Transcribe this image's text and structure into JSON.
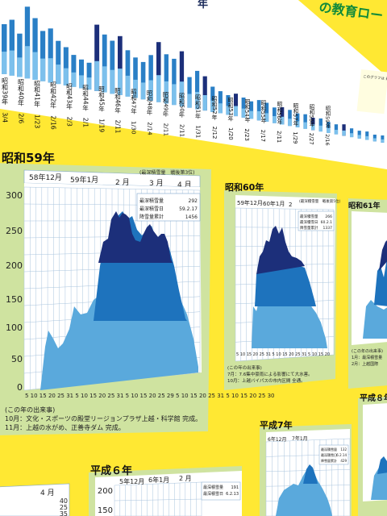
{
  "poster": {
    "background": "#ffe833",
    "top_fragment": "年",
    "top_right_fragment": "の教育ロー",
    "corner_note": "このグラフは 最深積雪の"
  },
  "colors": {
    "light_blue": "#5aa9dc",
    "mid_blue": "#1e73bd",
    "dark_blue": "#1c2f7a",
    "green_panel": "#cfe3a0",
    "grid_line": "#a9c4de"
  },
  "top_strip": {
    "labels": [
      "昭和39年",
      "昭和40年",
      "昭和41年",
      "昭和42年",
      "昭和43年",
      "昭和44年",
      "昭和45年",
      "昭和46年",
      "昭和47年",
      "昭和48年",
      "昭和49年",
      "昭和50年",
      "昭和51年",
      "昭和52年",
      "昭和53年",
      "昭和54年",
      "昭和55年",
      "昭和56年",
      "昭和57年",
      "昭和58年",
      "昭和59年"
    ],
    "dates": [
      "3/4",
      "2/6",
      "1/23",
      "2/16",
      "2/3",
      "2/1",
      "1/19",
      "2/11",
      "1/30",
      "2/14",
      "2/11",
      "2/11",
      "1/31",
      "2/12",
      "1/20",
      "2/23",
      "2/17",
      "2/11",
      "1/29",
      "2/27",
      "2/16"
    ]
  },
  "panel_s59": {
    "title": "昭和59年",
    "col_labels": [
      "58年12月",
      "59年1月",
      "2 月",
      "3 月",
      "4 月"
    ],
    "legend_title": "(最深積雪量　戦後第3位)",
    "stats": [
      {
        "label": "最深積雪量",
        "value": "292"
      },
      {
        "label": "最深積雪日",
        "value": "59.2.17"
      },
      {
        "label": "降雪量累計",
        "value": "1456"
      }
    ],
    "x_ticks": "5 10 15 20 25 31 5 10 15 20 25 31 5 10 15 20 25 29 5 10 15 20 25 31 5 10 15 20 25 30",
    "events": [
      "(この年の出来事)",
      "10月：文化・スポーツの殿堂リージョンプラザ上越・科学館 完成。",
      "11月：上越の水がめ、正善寺ダム 完成。"
    ]
  },
  "panel_s60": {
    "title": "昭和60年",
    "col_labels": [
      "59年12月",
      "60年1月",
      "2"
    ],
    "legend_title": "(最深積雪量　戦後第5位)",
    "stats": [
      {
        "label": "最深積雪量",
        "value": "266"
      },
      {
        "label": "最深積雪日",
        "value": "60.2.1"
      },
      {
        "label": "降雪量累計",
        "value": "1337"
      }
    ],
    "x_ticks": "5 10 15 20 25 31 5 10 15 20 25 31 5 10 15 20",
    "events": [
      "(この年の出来事)",
      "7月：7.6集中豪雨による影響にて大水害。",
      "10月：上越バイパスの市内区間 全通。"
    ]
  },
  "panel_s61": {
    "title": "昭和61年",
    "events": [
      "(この年の出来事)",
      "1月：最深積雪量",
      "2月：上越国際"
    ]
  },
  "panel_h6": {
    "title": "平成６年",
    "col_labels": [
      "5年12月",
      "6年1月",
      "2 月"
    ],
    "stats": [
      {
        "label": "最深積雪量",
        "value": "191"
      },
      {
        "label": "最深積雪日",
        "value": "6.2.13"
      }
    ]
  },
  "panel_h7": {
    "title": "平成7年",
    "col_labels": [
      "6年12月",
      "7年1月"
    ],
    "stats": [
      {
        "label": "最深積雪量",
        "value": "132"
      },
      {
        "label": "最深積雪日",
        "value": "6.2.14"
      },
      {
        "label": "降雪量累計",
        "value": "429"
      }
    ]
  },
  "panel_h8": {
    "title": "平成８年"
  },
  "panel_bottom_left": {
    "col_label": "4 月",
    "values": [
      "40",
      "25",
      "35"
    ]
  },
  "axis_labels_main": [
    "300",
    "250",
    "200",
    "150",
    "100",
    "50",
    "0"
  ],
  "axis_labels_h6": [
    "200",
    "150"
  ]
}
